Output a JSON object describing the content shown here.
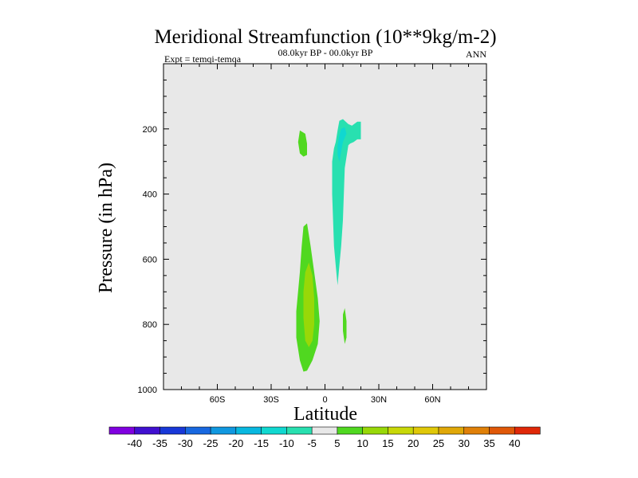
{
  "chart_data": {
    "type": "contour",
    "title": "Meridional Streamfunction (10**9kg/m-2)",
    "left_label": "Expt = temqi-temqa",
    "center_label": "08.0kyr BP - 00.0kyr BP",
    "right_label": "ANN",
    "xlabel": "Latitude",
    "ylabel": "Pressure (in hPa)",
    "xlim": [
      -90,
      90
    ],
    "ylim": [
      1000,
      0
    ],
    "x_ticks": [
      {
        "value": -60,
        "label": "60S"
      },
      {
        "value": -30,
        "label": "30S"
      },
      {
        "value": 0,
        "label": "0"
      },
      {
        "value": 30,
        "label": "30N"
      },
      {
        "value": 60,
        "label": "60N"
      }
    ],
    "y_ticks": [
      {
        "value": 200,
        "label": "200"
      },
      {
        "value": 400,
        "label": "400"
      },
      {
        "value": 600,
        "label": "600"
      },
      {
        "value": 800,
        "label": "800"
      },
      {
        "value": 1000,
        "label": "1000"
      }
    ],
    "background_color": "#e8e8e8",
    "colorbar": {
      "levels": [
        "-40",
        "-35",
        "-30",
        "-25",
        "-20",
        "-15",
        "-10",
        "-5",
        "5",
        "10",
        "15",
        "20",
        "25",
        "30",
        "35",
        "40"
      ],
      "colors": [
        "#8000e0",
        "#4010d0",
        "#1838d8",
        "#1868e0",
        "#1098e0",
        "#08b8e0",
        "#10d8d0",
        "#28e0b0",
        "#e8e8e8",
        "#50d820",
        "#98d808",
        "#c8d808",
        "#e0c808",
        "#e0a808",
        "#e08008",
        "#e05808",
        "#e02808"
      ]
    },
    "regions": [
      {
        "name": "positive-cell-lower-5-10",
        "fill": "#50d820",
        "points": [
          [
            -10,
            490
          ],
          [
            -8,
            560
          ],
          [
            -6,
            640
          ],
          [
            -4,
            720
          ],
          [
            -3,
            790
          ],
          [
            -4,
            860
          ],
          [
            -7,
            910
          ],
          [
            -10,
            942
          ],
          [
            -12,
            945
          ],
          [
            -14,
            910
          ],
          [
            -16,
            840
          ],
          [
            -16,
            760
          ],
          [
            -14,
            640
          ],
          [
            -13,
            560
          ],
          [
            -12,
            500
          ]
        ]
      },
      {
        "name": "positive-cell-lower-10-15",
        "fill": "#98d808",
        "points": [
          [
            -9,
            610
          ],
          [
            -7,
            650
          ],
          [
            -6,
            720
          ],
          [
            -6,
            800
          ],
          [
            -7,
            850
          ],
          [
            -9,
            870
          ],
          [
            -11,
            850
          ],
          [
            -12,
            780
          ],
          [
            -12,
            700
          ],
          [
            -11,
            640
          ]
        ]
      },
      {
        "name": "positive-cell-upper-5-10",
        "fill": "#50d820",
        "points": [
          [
            -14,
            205
          ],
          [
            -11,
            215
          ],
          [
            -10,
            245
          ],
          [
            -10,
            280
          ],
          [
            -12,
            285
          ],
          [
            -14,
            275
          ],
          [
            -15,
            240
          ]
        ]
      },
      {
        "name": "positive-cell-small-5-10",
        "fill": "#50d820",
        "points": [
          [
            11,
            750
          ],
          [
            12,
            790
          ],
          [
            12,
            840
          ],
          [
            11,
            860
          ],
          [
            10,
            820
          ],
          [
            10,
            770
          ]
        ]
      },
      {
        "name": "negative-cell-upper",
        "fill": "#28e0b0",
        "points": [
          [
            6,
            240
          ],
          [
            7,
            205
          ],
          [
            8,
            175
          ],
          [
            10,
            170
          ],
          [
            13,
            185
          ],
          [
            15,
            190
          ],
          [
            18,
            178
          ],
          [
            20,
            178
          ],
          [
            20,
            232
          ],
          [
            18,
            232
          ],
          [
            16,
            240
          ],
          [
            14,
            245
          ],
          [
            13,
            250
          ],
          [
            11,
            320
          ],
          [
            10,
            480
          ],
          [
            9,
            560
          ],
          [
            8,
            620
          ],
          [
            7,
            680
          ],
          [
            6,
            620
          ],
          [
            5,
            560
          ],
          [
            4,
            400
          ],
          [
            4,
            300
          ],
          [
            5,
            260
          ]
        ]
      },
      {
        "name": "negative-cell-upper-core",
        "fill": "#10d8d0",
        "points": [
          [
            8,
            220
          ],
          [
            9,
            200
          ],
          [
            11,
            195
          ],
          [
            12,
            215
          ],
          [
            10,
            240
          ],
          [
            9,
            270
          ],
          [
            8,
            300
          ],
          [
            7,
            280
          ],
          [
            7,
            250
          ]
        ]
      }
    ]
  }
}
